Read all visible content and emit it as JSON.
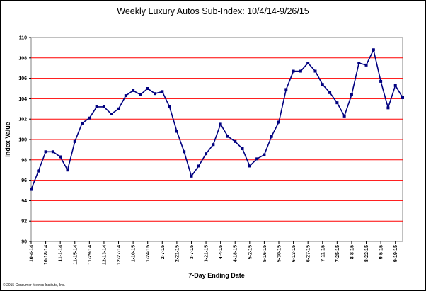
{
  "chart_data": {
    "type": "line",
    "title": "Weekly Luxury Autos Sub-Index: 10/4/14-9/26/15",
    "xlabel": "7-Day Ending Date",
    "ylabel": "Index Value",
    "ylim": [
      90,
      110
    ],
    "y_ticks": [
      "90",
      "92",
      "94",
      "96",
      "98",
      "100",
      "102",
      "104",
      "106",
      "108",
      "110"
    ],
    "grid": true,
    "x_tick_labels": [
      "10-4-14",
      "10-18-14",
      "11-1-14",
      "11-15-14",
      "11-29-14",
      "12-13-14",
      "12-27-14",
      "1-10-15",
      "1-24-15",
      "2-7-15",
      "2-21-15",
      "3-7-15",
      "3-21-15",
      "4-4-15",
      "4-18-15",
      "5-2-15",
      "5-16-15",
      "5-30-15",
      "6-13-15",
      "6-27-15",
      "7-11-15",
      "7-25-15",
      "8-8-15",
      "8-22-15",
      "9-5-15",
      "9-19-15"
    ],
    "series": [
      {
        "name": "",
        "values": [
          95.1,
          96.9,
          98.8,
          98.8,
          98.3,
          97.0,
          99.8,
          101.6,
          102.1,
          103.2,
          103.2,
          102.5,
          103.0,
          104.3,
          104.8,
          104.4,
          105.0,
          104.5,
          104.7,
          103.2,
          100.8,
          98.8,
          96.4,
          97.4,
          98.6,
          99.5,
          101.5,
          100.3,
          99.8,
          99.1,
          97.4,
          98.1,
          98.5,
          100.3,
          101.7,
          104.9,
          106.7,
          106.7,
          107.5,
          106.7,
          105.4,
          104.6,
          103.6,
          102.3,
          104.4,
          107.5,
          107.3,
          108.8,
          105.7,
          103.1,
          105.3,
          104.1
        ]
      }
    ]
  },
  "colors": {
    "line": "#000080",
    "grid": "#ff0000",
    "marker": "#000080"
  },
  "footer": {
    "copyright": "© 2015 Consumer Metrics Institute, Inc."
  }
}
